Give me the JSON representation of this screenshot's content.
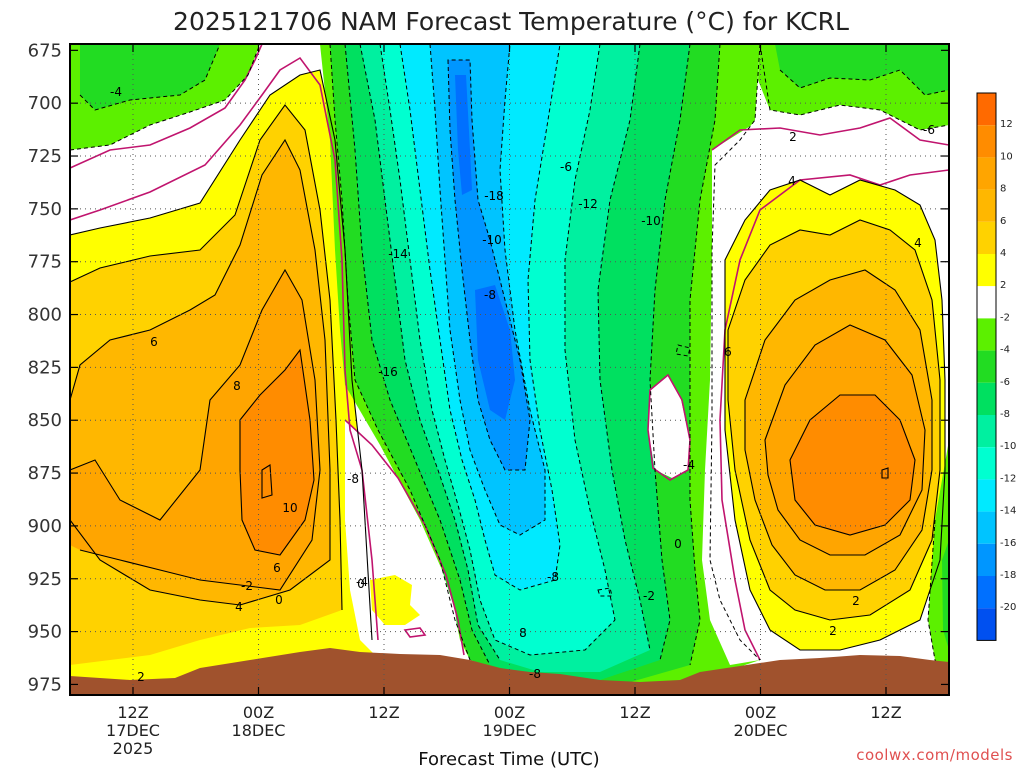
{
  "title": "2025121706 NAM Forecast Temperature (°C) for KCRL",
  "xlabel": "Forecast Time (UTC)",
  "credit": "coolwx.com/models",
  "colors": {
    "frame": "#000000",
    "grid": "#555555",
    "terrain": "#a0522d",
    "zero_line": "#c0146e"
  },
  "chart_data": {
    "type": "heatmap",
    "title": "2025121706 NAM Forecast Temperature (°C) for KCRL",
    "xlabel": "Forecast Time (UTC)",
    "ylabel": "",
    "y_axis": "pressure (hPa), inverted",
    "ylim": [
      980,
      672
    ],
    "y_ticks": [
      "675",
      "700",
      "725",
      "750",
      "775",
      "800",
      "825",
      "850",
      "875",
      "900",
      "925",
      "950",
      "975"
    ],
    "x_ticks": [
      {
        "line1": "12Z",
        "line2": "17DEC",
        "line3": "2025"
      },
      {
        "line1": "00Z",
        "line2": "18DEC",
        "line3": ""
      },
      {
        "line1": "12Z",
        "line2": "",
        "line3": ""
      },
      {
        "line1": "00Z",
        "line2": "19DEC",
        "line3": ""
      },
      {
        "line1": "12Z",
        "line2": "",
        "line3": ""
      },
      {
        "line1": "00Z",
        "line2": "20DEC",
        "line3": ""
      },
      {
        "line1": "12Z",
        "line2": "",
        "line3": ""
      }
    ],
    "grid": true,
    "colorbar": {
      "labels": [
        "12",
        "10",
        "8",
        "6",
        "4",
        "2",
        "-2",
        "-4",
        "-6",
        "-8",
        "-10",
        "-12",
        "-14",
        "-16",
        "-18",
        "-20"
      ],
      "bands": [
        {
          "range": "above 12",
          "color": "#ff6a00"
        },
        {
          "range": "10 to 12",
          "color": "#ff8c00"
        },
        {
          "range": "8 to 10",
          "color": "#ffa500"
        },
        {
          "range": "6 to 8",
          "color": "#ffb700"
        },
        {
          "range": "4 to 6",
          "color": "#ffd200"
        },
        {
          "range": "2 to 4",
          "color": "#ffff00"
        },
        {
          "range": "-2 to 2",
          "color": "#ffffff"
        },
        {
          "range": "-4 to -2",
          "color": "#5cf000"
        },
        {
          "range": "-6 to -4",
          "color": "#22dc22"
        },
        {
          "range": "-8 to -6",
          "color": "#00e060"
        },
        {
          "range": "-10 to -8",
          "color": "#00f0a0"
        },
        {
          "range": "-12 to -10",
          "color": "#00ffd0"
        },
        {
          "range": "-14 to -12",
          "color": "#00eaff"
        },
        {
          "range": "-16 to -14",
          "color": "#00c4ff"
        },
        {
          "range": "-18 to -16",
          "color": "#0096ff"
        },
        {
          "range": "-20 to -18",
          "color": "#0070ff"
        },
        {
          "range": "below -20",
          "color": "#0050f0"
        }
      ]
    },
    "contour_labels": [
      "-4",
      "0",
      "2",
      "4",
      "6",
      "8",
      "10",
      "-2",
      "0",
      "-8",
      "-4",
      "-14",
      "-16",
      "-18",
      "-10",
      "-8",
      "-6",
      "-12",
      "-10",
      "-8",
      "-8",
      "-2",
      "-4",
      "0",
      "2",
      "4",
      "4",
      "6",
      "2",
      "2",
      "6",
      "8",
      "-6"
    ]
  }
}
